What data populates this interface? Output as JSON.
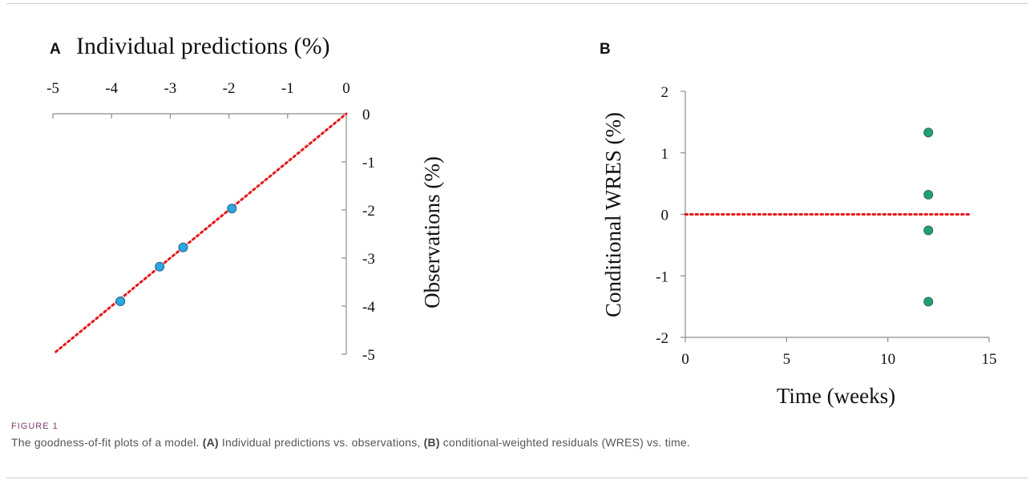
{
  "chart_data": [
    {
      "type": "scatter",
      "panel_label": "A",
      "title": "Individual predictions (%)",
      "xlabel": "",
      "ylabel": "Observations (%)",
      "xlim": [
        -5,
        0
      ],
      "ylim": [
        -5,
        0
      ],
      "x_ticks": [
        -5,
        -4,
        -3,
        -2,
        -1,
        0
      ],
      "y_ticks": [
        0,
        -1,
        -2,
        -3,
        -4,
        -5
      ],
      "x_tick_labels": [
        "-5",
        "-4",
        "-3",
        "-2",
        "-1",
        "0"
      ],
      "y_tick_labels": [
        "0",
        "-1",
        "-2",
        "-3",
        "-4",
        "-5"
      ],
      "x_axis_position": "top",
      "y_axis_position": "right",
      "points": [
        {
          "x": -3.85,
          "y": -3.9
        },
        {
          "x": -3.18,
          "y": -3.18
        },
        {
          "x": -2.78,
          "y": -2.78
        },
        {
          "x": -1.95,
          "y": -1.97
        }
      ],
      "reference_line": {
        "from": [
          -4.95,
          -4.95
        ],
        "to": [
          0,
          0
        ],
        "style": "dotted",
        "color": "#e41a1c"
      },
      "marker_color": "#29a8e0",
      "marker_edge": "#2f5f8a"
    },
    {
      "type": "scatter",
      "panel_label": "B",
      "title": "",
      "xlabel": "Time (weeks)",
      "ylabel": "Conditional WRES (%)",
      "xlim": [
        0,
        15
      ],
      "ylim": [
        -2,
        2
      ],
      "x_ticks": [
        0,
        5,
        10,
        15
      ],
      "y_ticks": [
        2,
        1,
        0,
        -1,
        -2
      ],
      "x_tick_labels": [
        "0",
        "5",
        "10",
        "15"
      ],
      "y_tick_labels": [
        "2",
        "1",
        "0",
        "-1",
        "-2"
      ],
      "points": [
        {
          "x": 12,
          "y": 1.33
        },
        {
          "x": 12,
          "y": 0.32
        },
        {
          "x": 12,
          "y": -0.26
        },
        {
          "x": 12,
          "y": -1.42
        }
      ],
      "reference_line": {
        "from": [
          0,
          0
        ],
        "to": [
          14,
          0
        ],
        "style": "dotted",
        "color": "#e41a1c"
      },
      "marker_color": "#1fa36b",
      "marker_edge": "#2f5f8a"
    }
  ],
  "caption": {
    "label": "FIGURE 1",
    "text_start": "The goodness-of-fit plots of a model. ",
    "a_tag": "(A)",
    "a_text": " Individual predictions vs. observations, ",
    "b_tag": "(B)",
    "b_text": " conditional-weighted residuals (WRES) vs. time."
  }
}
